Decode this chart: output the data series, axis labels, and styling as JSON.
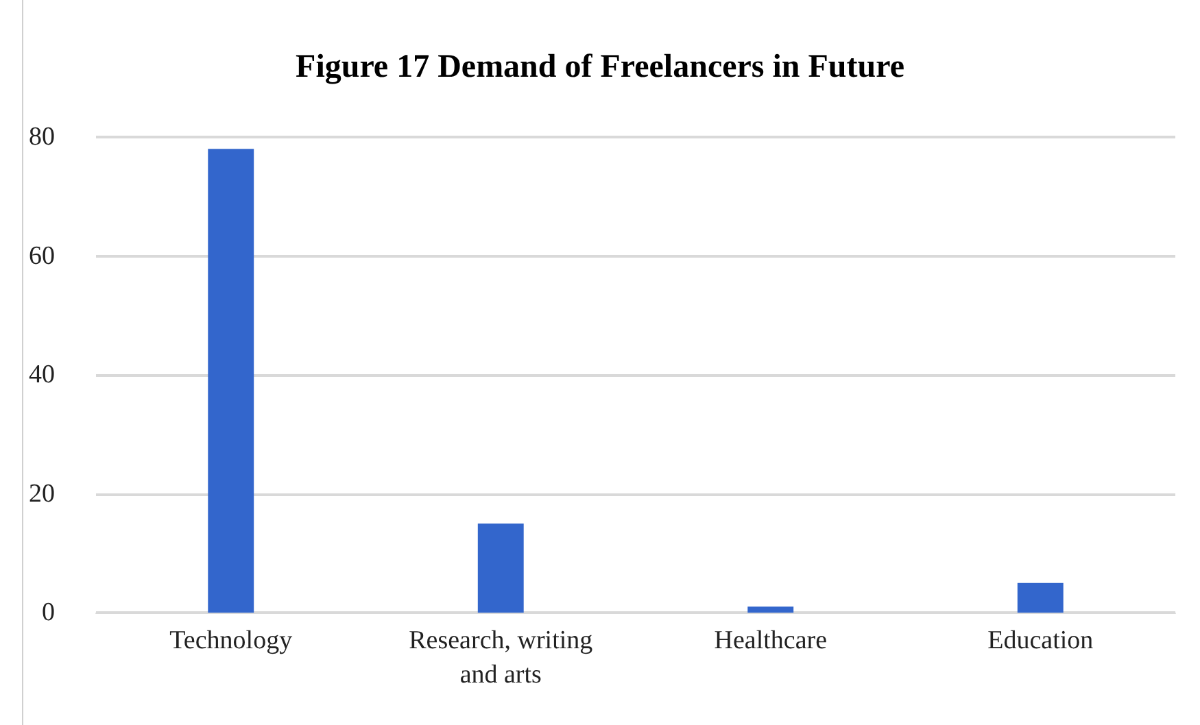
{
  "chart_data": {
    "type": "bar",
    "title": "Figure 17 Demand of Freelancers in Future",
    "categories": [
      "Technology",
      "Research, writing\nand arts",
      "Healthcare",
      "Education"
    ],
    "values": [
      78,
      15,
      1,
      5
    ],
    "color": "#3366cc",
    "ylim": [
      0,
      80
    ],
    "yticks": [
      0,
      20,
      40,
      60,
      80
    ],
    "grid": "y"
  }
}
